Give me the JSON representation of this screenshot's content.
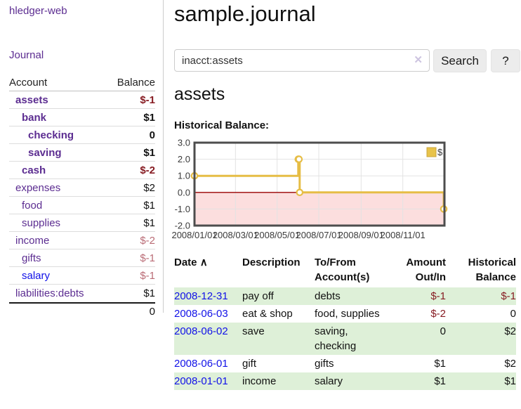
{
  "app": {
    "title": "hledger-web",
    "nav_journal": "Journal"
  },
  "sidebar": {
    "header": {
      "account": "Account",
      "balance": "Balance"
    },
    "accounts": [
      {
        "name": "assets",
        "depth": 1,
        "bold": true,
        "link": "visited",
        "balance": "$-1",
        "tone": "neg-strong"
      },
      {
        "name": "bank",
        "depth": 2,
        "bold": true,
        "link": "visited",
        "balance": "$1",
        "tone": "pos"
      },
      {
        "name": "checking",
        "depth": 3,
        "bold": true,
        "link": "visited",
        "balance": "0",
        "tone": "pos"
      },
      {
        "name": "saving",
        "depth": 3,
        "bold": true,
        "link": "visited",
        "balance": "$1",
        "tone": "pos"
      },
      {
        "name": "cash",
        "depth": 2,
        "bold": true,
        "link": "visited",
        "balance": "$-2",
        "tone": "neg-strong"
      },
      {
        "name": "expenses",
        "depth": 1,
        "bold": false,
        "link": "visited",
        "balance": "$2",
        "tone": "pos"
      },
      {
        "name": "food",
        "depth": 2,
        "bold": false,
        "link": "visited",
        "balance": "$1",
        "tone": "pos"
      },
      {
        "name": "supplies",
        "depth": 2,
        "bold": false,
        "link": "visited",
        "balance": "$1",
        "tone": "pos"
      },
      {
        "name": "income",
        "depth": 1,
        "bold": false,
        "link": "visited",
        "balance": "$-2",
        "tone": "neg-muted"
      },
      {
        "name": "gifts",
        "depth": 2,
        "bold": false,
        "link": "visited",
        "balance": "$-1",
        "tone": "neg-muted"
      },
      {
        "name": "salary",
        "depth": 2,
        "bold": false,
        "link": "unvisited",
        "balance": "$-1",
        "tone": "neg-muted"
      },
      {
        "name": "liabilities:debts",
        "depth": 1,
        "bold": false,
        "link": "visited",
        "balance": "$1",
        "tone": "pos"
      }
    ],
    "total": "0"
  },
  "header": {
    "title": "sample.journal"
  },
  "search": {
    "query": "inacct:assets",
    "clear_icon": "✕",
    "button_label": "Search",
    "help_label": "?"
  },
  "main": {
    "heading": "assets",
    "chart_label": "Historical Balance:"
  },
  "chart_data": {
    "type": "line",
    "title": "Historical Balance",
    "step": true,
    "series": [
      {
        "name": "$",
        "color": "#e6bd45",
        "points": [
          [
            "2008-01-01",
            1
          ],
          [
            "2008-06-01",
            2
          ],
          [
            "2008-06-02",
            2
          ],
          [
            "2008-06-03",
            0
          ],
          [
            "2008-12-31",
            -1
          ]
        ]
      }
    ],
    "x_domain": [
      "2008-01-01",
      "2009-01-01"
    ],
    "x_ticks": [
      {
        "date": "2008-01-01",
        "label": "2008/01/01"
      },
      {
        "date": "2008-03-01",
        "label": "2008/03/01"
      },
      {
        "date": "2008-05-01",
        "label": "2008/05/01"
      },
      {
        "date": "2008-07-01",
        "label": "2008/07/01"
      },
      {
        "date": "2008-09-01",
        "label": "2008/09/01"
      },
      {
        "date": "2008-11-01",
        "label": "2008/11/01"
      }
    ],
    "ylim": [
      -2,
      3
    ],
    "y_ticks": [
      {
        "v": 3,
        "label": "3.0"
      },
      {
        "v": 2,
        "label": "2.0"
      },
      {
        "v": 1,
        "label": "1.0"
      },
      {
        "v": 0,
        "label": "0.0"
      },
      {
        "v": -1,
        "label": "-1.0"
      },
      {
        "v": -2,
        "label": "-2.0"
      }
    ],
    "grid": true,
    "grid_color": "#e3e3e3",
    "border_color": "#4d4d4d",
    "negative_fill": "#fcdede",
    "zero_line_color": "#990000",
    "legend": {
      "position": "top-right",
      "label": "$",
      "swatch_fill": "#e8c34a",
      "swatch_border": "#c9a53e"
    }
  },
  "register": {
    "sort_arrow": "∧",
    "columns": [
      "Date",
      "Description",
      "To/From Account(s)",
      "Amount Out/In",
      "Historical Balance"
    ],
    "rows": [
      {
        "date": "2008-12-31",
        "description": "pay off",
        "accounts": "debts",
        "amount": "$-1",
        "amount_tone": "neg-strong",
        "balance": "$-1",
        "balance_tone": "neg-strong"
      },
      {
        "date": "2008-06-03",
        "description": "eat & shop",
        "accounts": "food, supplies",
        "amount": "$-2",
        "amount_tone": "neg-strong",
        "balance": "0",
        "balance_tone": "pos"
      },
      {
        "date": "2008-06-02",
        "description": "save",
        "accounts": "saving, checking",
        "amount": "0",
        "amount_tone": "pos",
        "balance": "$2",
        "balance_tone": "pos"
      },
      {
        "date": "2008-06-01",
        "description": "gift",
        "accounts": "gifts",
        "amount": "$1",
        "amount_tone": "pos",
        "balance": "$2",
        "balance_tone": "pos"
      },
      {
        "date": "2008-01-01",
        "description": "income",
        "accounts": "salary",
        "amount": "$1",
        "amount_tone": "pos",
        "balance": "$1",
        "balance_tone": "pos"
      }
    ]
  }
}
